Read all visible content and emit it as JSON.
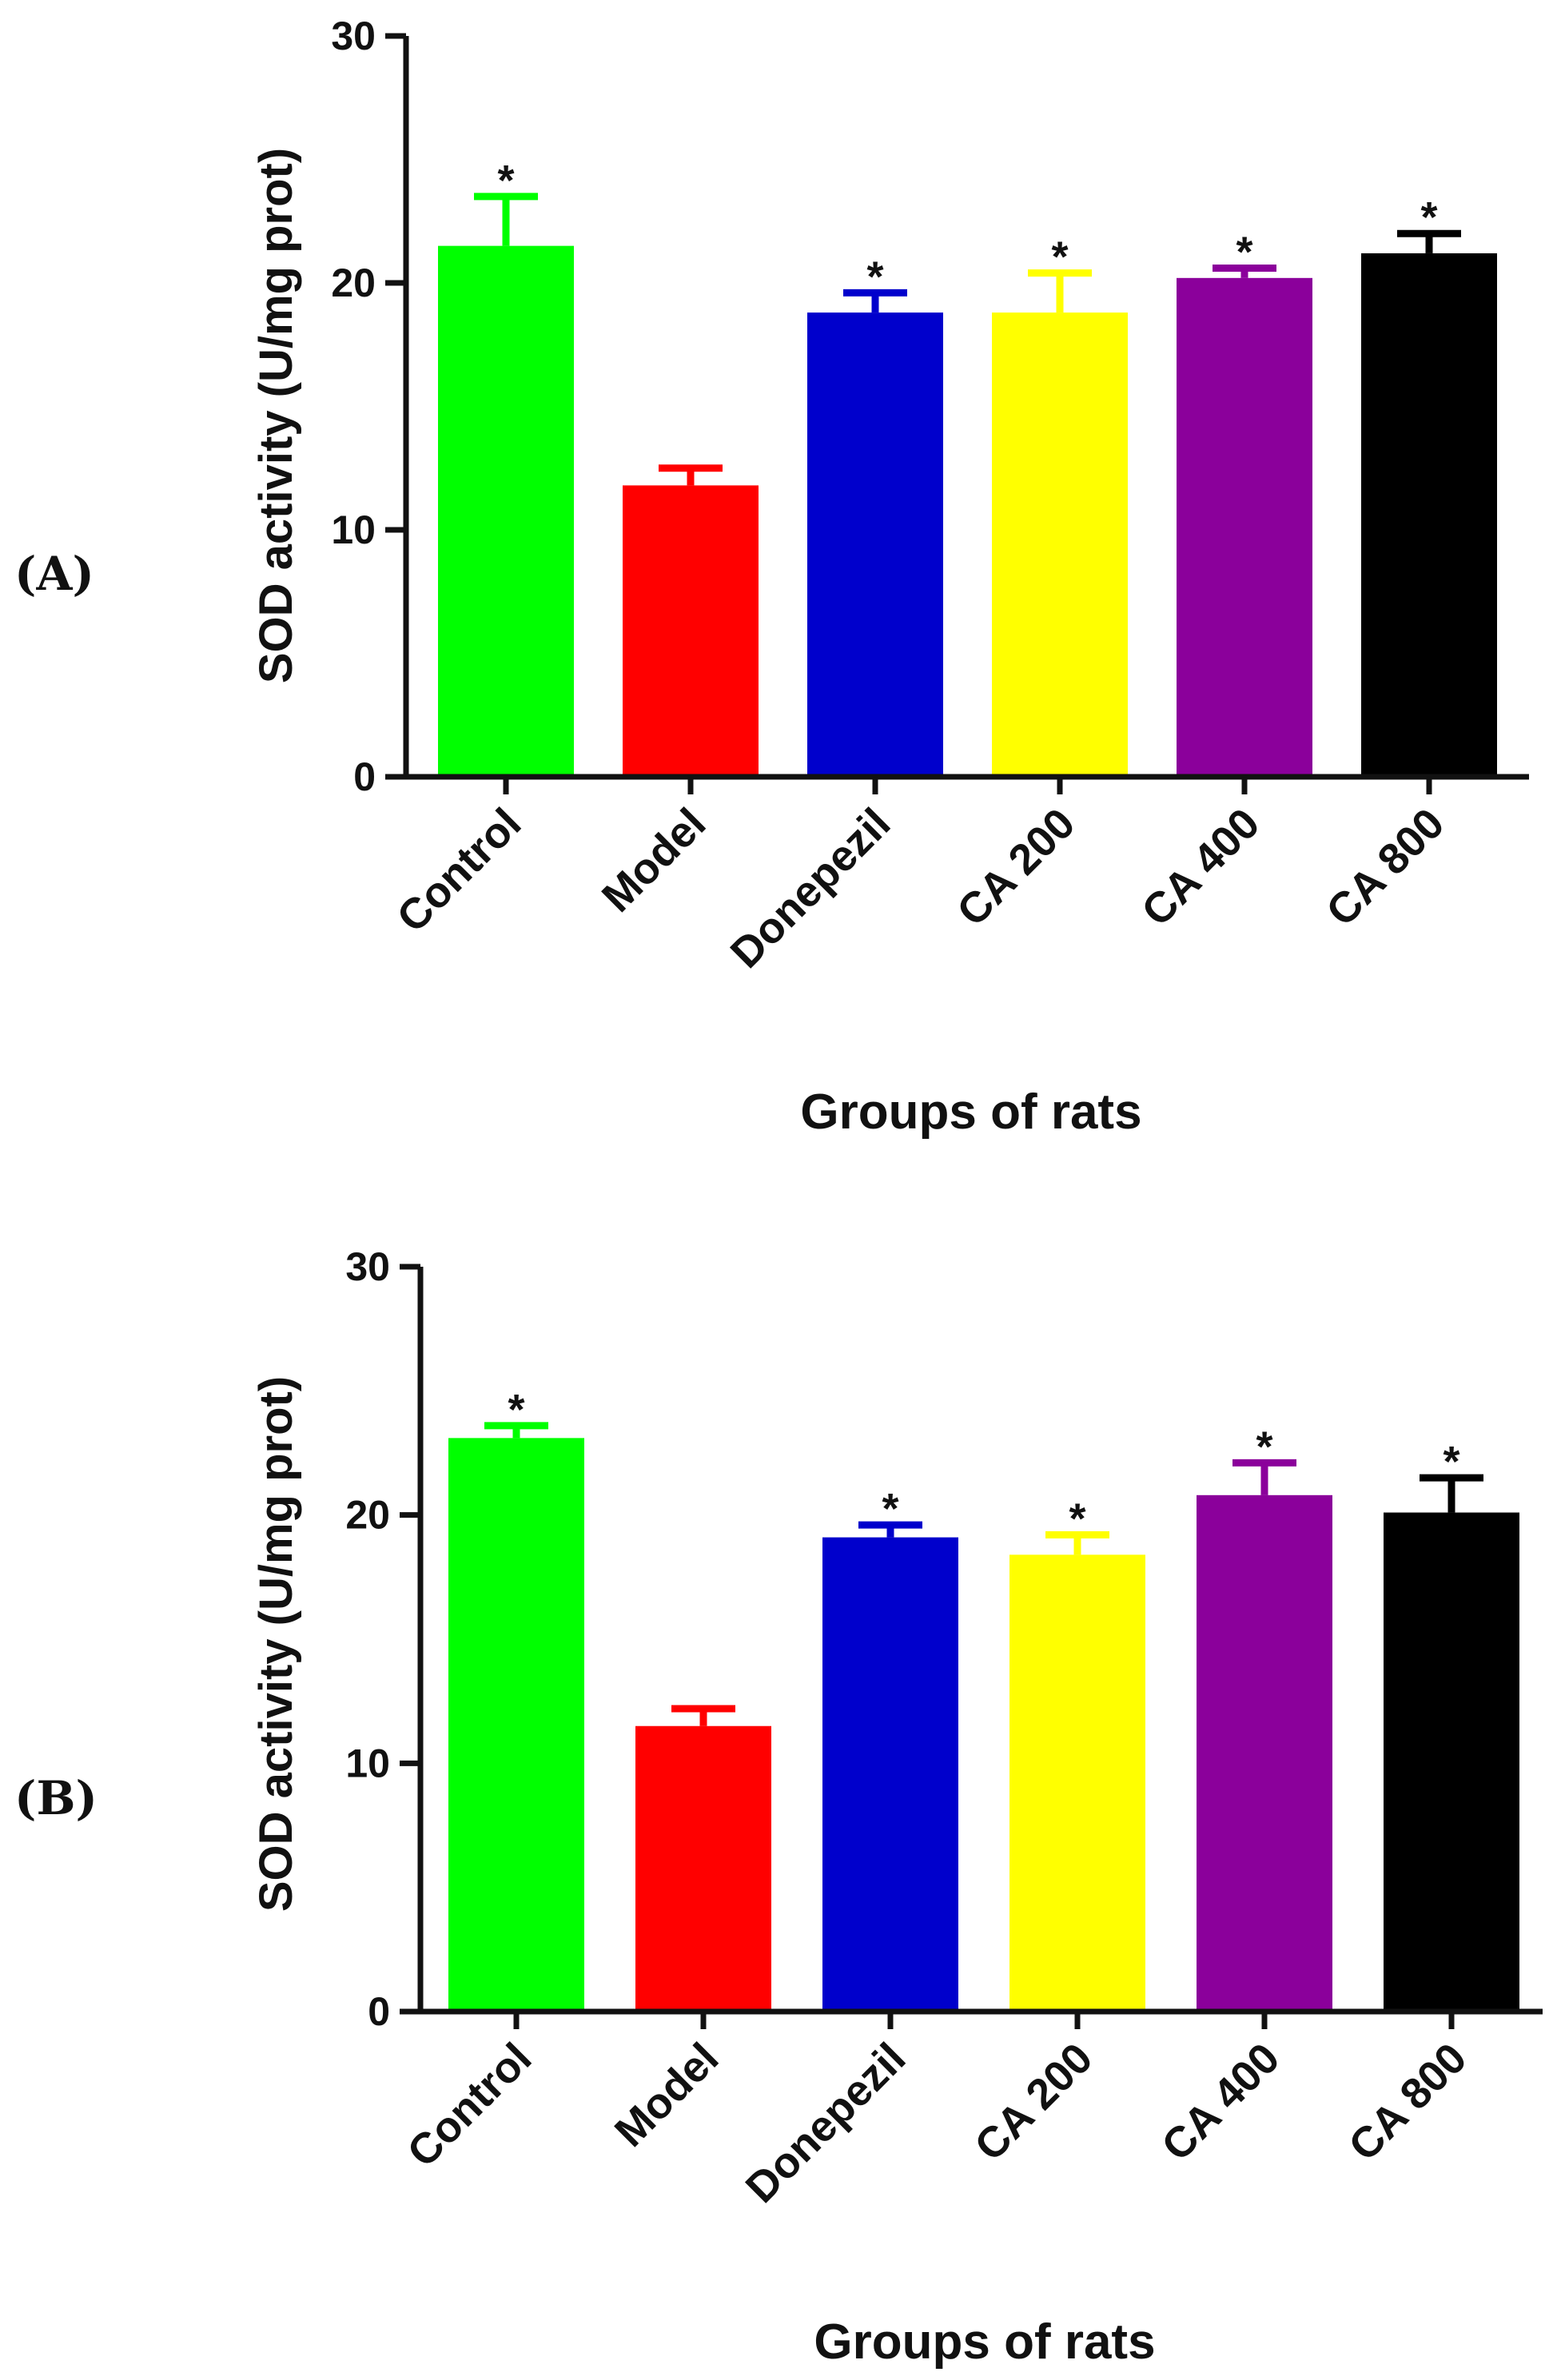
{
  "chart_data": [
    {
      "type": "bar",
      "panel_label": "(A)",
      "title": "",
      "xlabel": "Groups of rats",
      "ylabel": "SOD activity (U/mg prot)",
      "ylim": [
        0,
        30
      ],
      "yticks": [
        0,
        10,
        20,
        30
      ],
      "grid": false,
      "categories": [
        "Control",
        "Model",
        "Donepezil",
        "CA 200",
        "CA 400",
        "CA 800"
      ],
      "values": [
        21.5,
        11.8,
        18.8,
        18.8,
        20.2,
        21.2
      ],
      "errors": [
        2.0,
        0.7,
        0.8,
        1.6,
        0.4,
        0.8
      ],
      "significance": [
        "*",
        "",
        "*",
        "*",
        "*",
        "*"
      ],
      "colors": [
        "#00ff00",
        "#ff0000",
        "#0000cc",
        "#ffff00",
        "#8b009b",
        "#000000"
      ]
    },
    {
      "type": "bar",
      "panel_label": "(B)",
      "title": "",
      "xlabel": "Groups of rats",
      "ylabel": "SOD activity (U/mg prot)",
      "ylim": [
        0,
        30
      ],
      "yticks": [
        0,
        10,
        20,
        30
      ],
      "grid": false,
      "categories": [
        "Control",
        "Model",
        "Donepezil",
        "CA 200",
        "CA 400",
        "CA 800"
      ],
      "values": [
        23.1,
        11.5,
        19.1,
        18.4,
        20.8,
        20.1
      ],
      "errors": [
        0.5,
        0.7,
        0.5,
        0.8,
        1.3,
        1.4
      ],
      "significance": [
        "*",
        "",
        "*",
        "*",
        "*",
        "*"
      ],
      "colors": [
        "#00ff00",
        "#ff0000",
        "#0000cc",
        "#ffff00",
        "#8b009b",
        "#000000"
      ]
    }
  ]
}
